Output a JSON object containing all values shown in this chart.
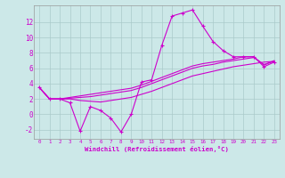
{
  "xlabel": "Windchill (Refroidissement éolien,°C)",
  "background_color": "#cce8e8",
  "grid_color": "#aacaca",
  "line_color": "#cc00cc",
  "x_ticks": [
    0,
    1,
    2,
    3,
    4,
    5,
    6,
    7,
    8,
    9,
    10,
    11,
    12,
    13,
    14,
    15,
    16,
    17,
    18,
    19,
    20,
    21,
    22,
    23
  ],
  "ylim": [
    -3.2,
    14.2
  ],
  "y_ticks": [
    -2,
    0,
    2,
    4,
    6,
    8,
    10,
    12
  ],
  "series": [
    [
      3.5,
      2.0,
      2.0,
      1.5,
      -2.2,
      1.0,
      0.5,
      -0.5,
      -2.3,
      0.0,
      4.2,
      4.5,
      9.0,
      12.8,
      13.2,
      13.6,
      11.5,
      9.5,
      8.3,
      7.5,
      7.5,
      7.5,
      6.2,
      6.8
    ],
    [
      3.5,
      2.0,
      2.0,
      2.0,
      1.8,
      1.7,
      1.6,
      1.8,
      2.0,
      2.2,
      2.6,
      3.0,
      3.5,
      4.0,
      4.5,
      5.0,
      5.3,
      5.6,
      5.9,
      6.2,
      6.4,
      6.6,
      6.8,
      6.9
    ],
    [
      3.5,
      2.0,
      2.0,
      2.1,
      2.2,
      2.3,
      2.5,
      2.7,
      2.9,
      3.1,
      3.5,
      4.0,
      4.5,
      5.0,
      5.5,
      6.0,
      6.3,
      6.5,
      6.8,
      7.0,
      7.2,
      7.4,
      6.5,
      6.9
    ],
    [
      3.5,
      2.0,
      2.0,
      2.2,
      2.4,
      2.6,
      2.8,
      3.0,
      3.2,
      3.4,
      3.8,
      4.3,
      4.8,
      5.3,
      5.8,
      6.3,
      6.6,
      6.8,
      7.0,
      7.2,
      7.5,
      7.5,
      6.4,
      7.0
    ]
  ],
  "figsize": [
    3.2,
    2.0
  ],
  "dpi": 100
}
